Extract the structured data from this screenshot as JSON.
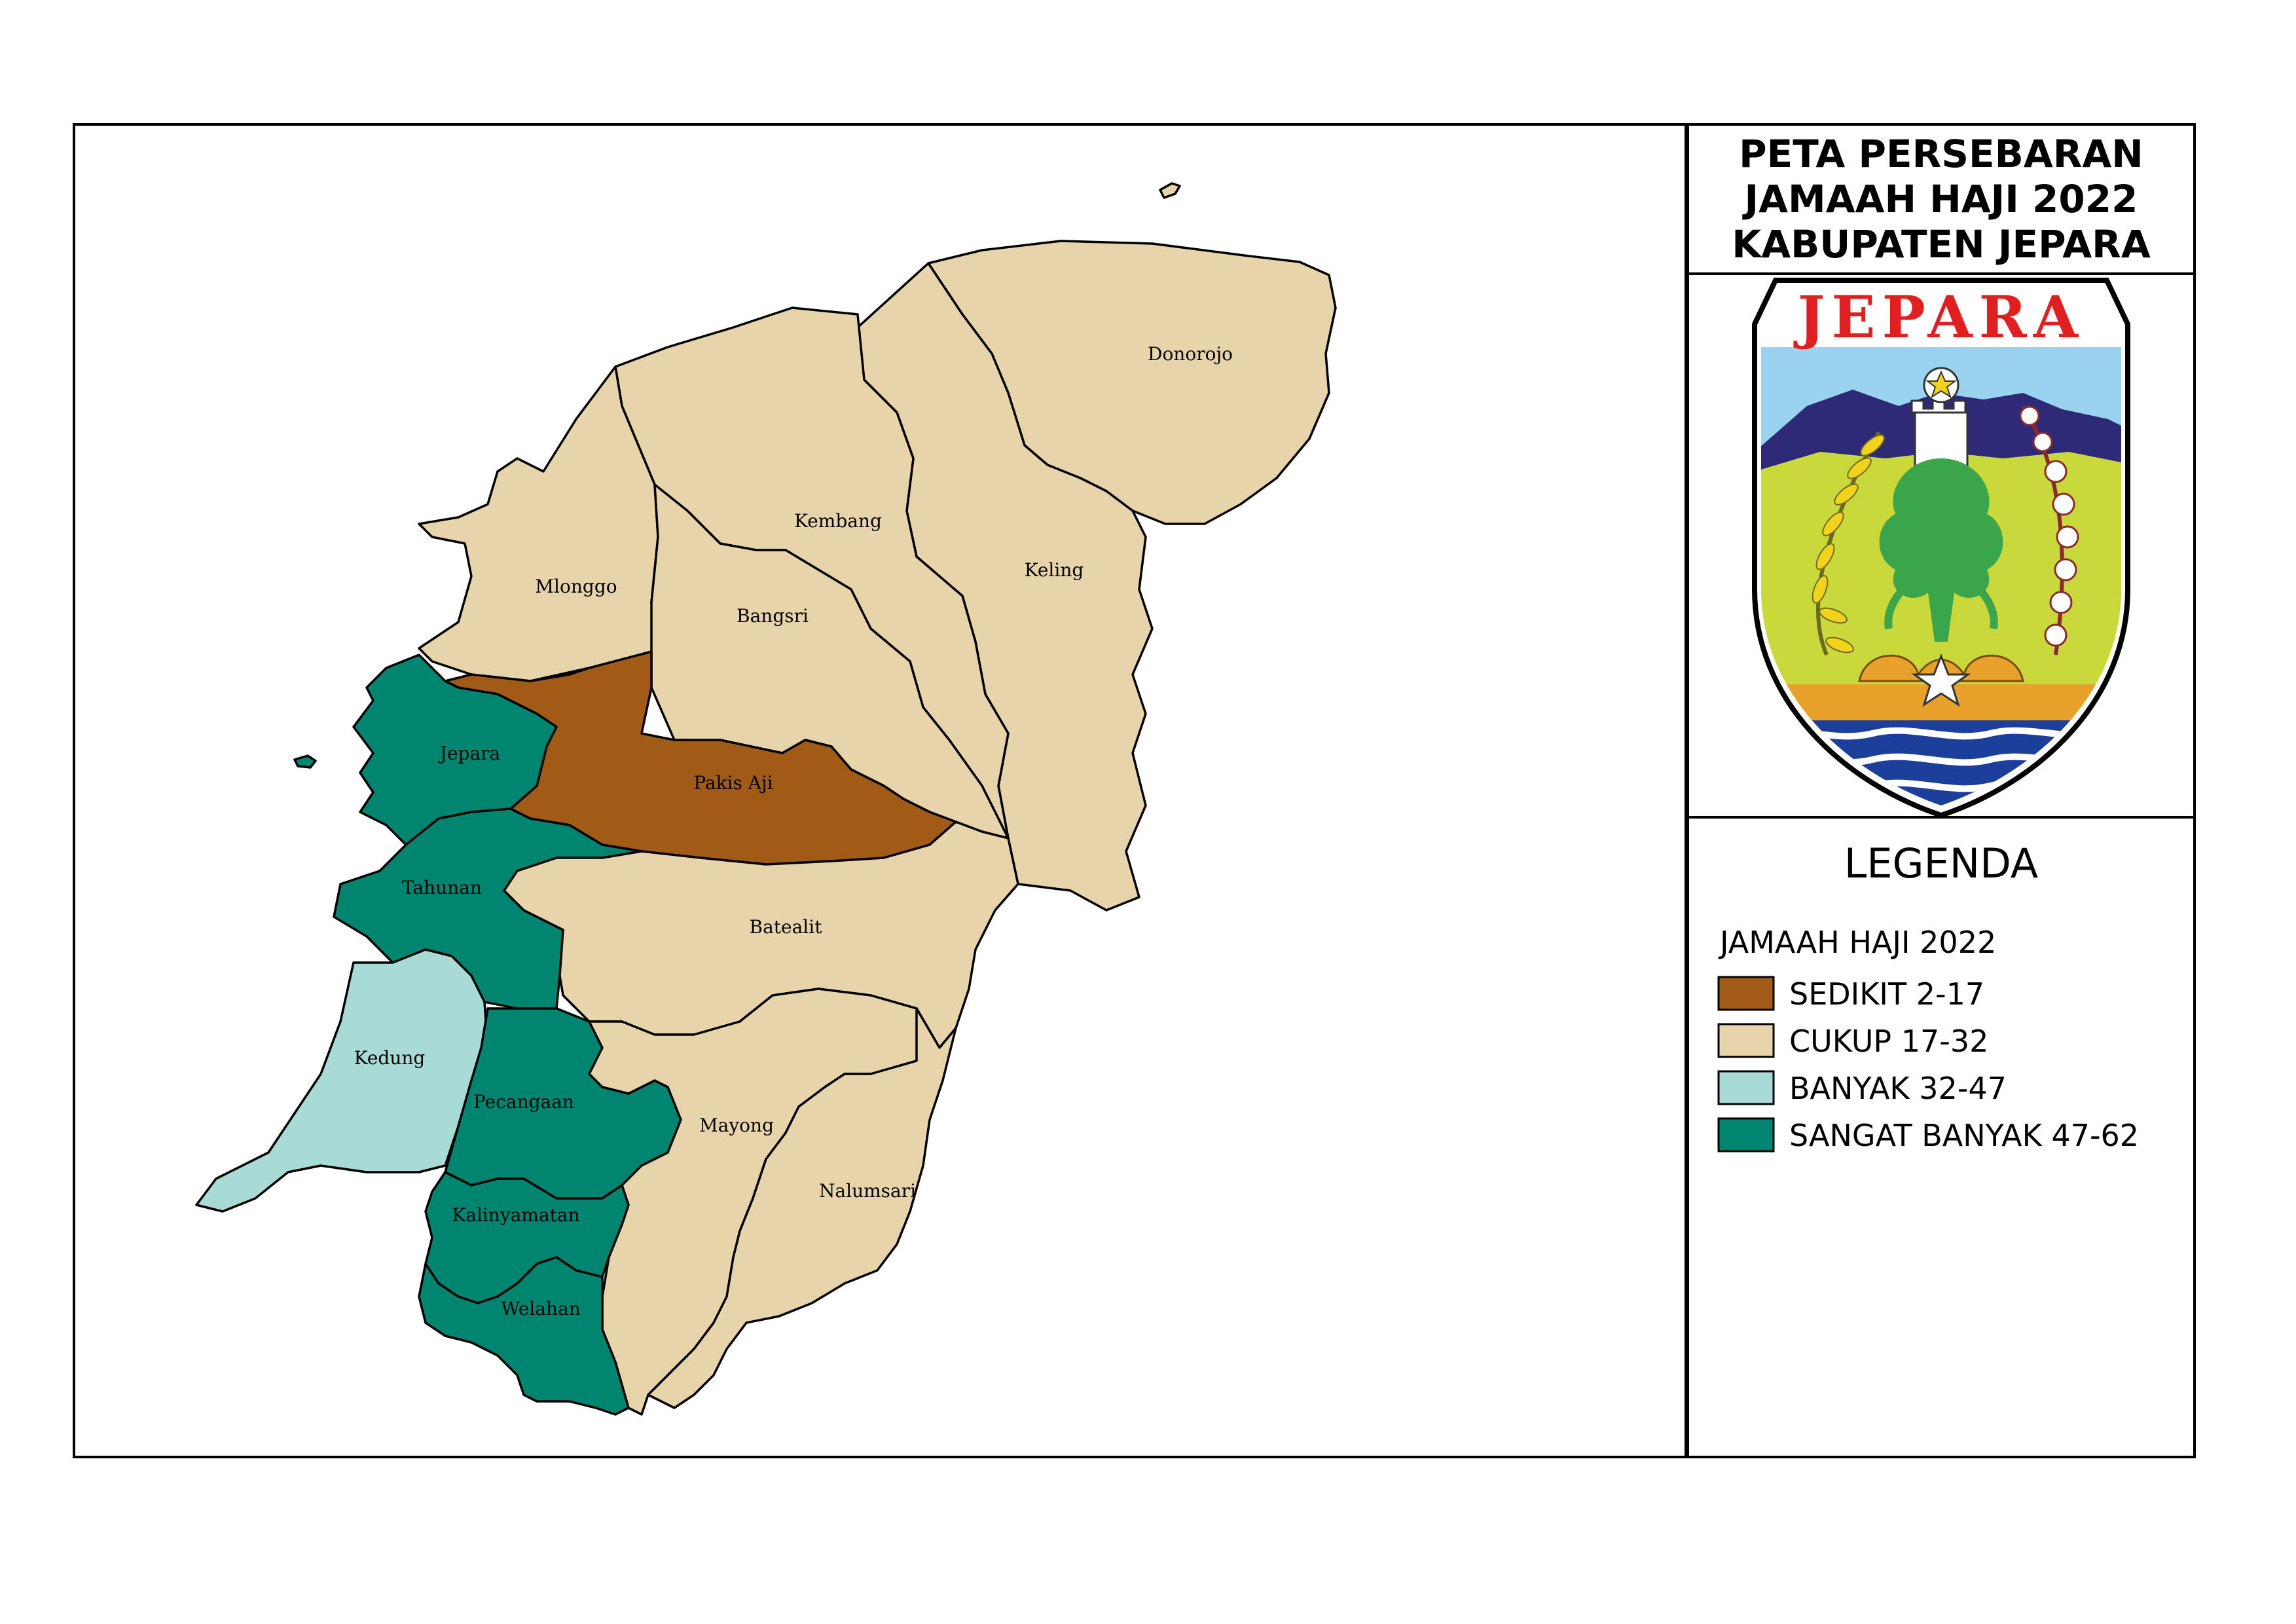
{
  "title": {
    "line1": "PETA PERSEBARAN",
    "line2": "JAMAAH HAJI 2022",
    "line3": "KABUPATEN JEPARA"
  },
  "emblem": {
    "text": "JEPARA",
    "icon": "jepara-coat-of-arms-icon"
  },
  "legend": {
    "heading": "LEGENDA",
    "subheading": "JAMAAH HAJI 2022",
    "items": [
      {
        "label": "SEDIKIT 2-17",
        "color": "#A25A17"
      },
      {
        "label": "CUKUP 17-32",
        "color": "#E8D4AA"
      },
      {
        "label": "BANYAK 32-47",
        "color": "#A8DBD5"
      },
      {
        "label": "SANGAT BANYAK 47-62",
        "color": "#008571"
      }
    ]
  },
  "districts": [
    {
      "name": "Donorojo",
      "class": "CUKUP 17-32"
    },
    {
      "name": "Kembang",
      "class": "CUKUP 17-32"
    },
    {
      "name": "Keling",
      "class": "CUKUP 17-32"
    },
    {
      "name": "Mlonggo",
      "class": "CUKUP 17-32"
    },
    {
      "name": "Bangsri",
      "class": "CUKUP 17-32"
    },
    {
      "name": "Jepara",
      "class": "SANGAT BANYAK 47-62"
    },
    {
      "name": "Pakis Aji",
      "class": "SEDIKIT 2-17"
    },
    {
      "name": "Tahunan",
      "class": "SANGAT BANYAK 47-62"
    },
    {
      "name": "Batealit",
      "class": "CUKUP 17-32"
    },
    {
      "name": "Kedung",
      "class": "BANYAK 32-47"
    },
    {
      "name": "Pecangaan",
      "class": "SANGAT BANYAK 47-62"
    },
    {
      "name": "Mayong",
      "class": "CUKUP 17-32"
    },
    {
      "name": "Nalumsari",
      "class": "CUKUP 17-32"
    },
    {
      "name": "Kalinyamatan",
      "class": "SANGAT BANYAK 47-62"
    },
    {
      "name": "Welahan",
      "class": "SANGAT BANYAK 47-62"
    }
  ]
}
